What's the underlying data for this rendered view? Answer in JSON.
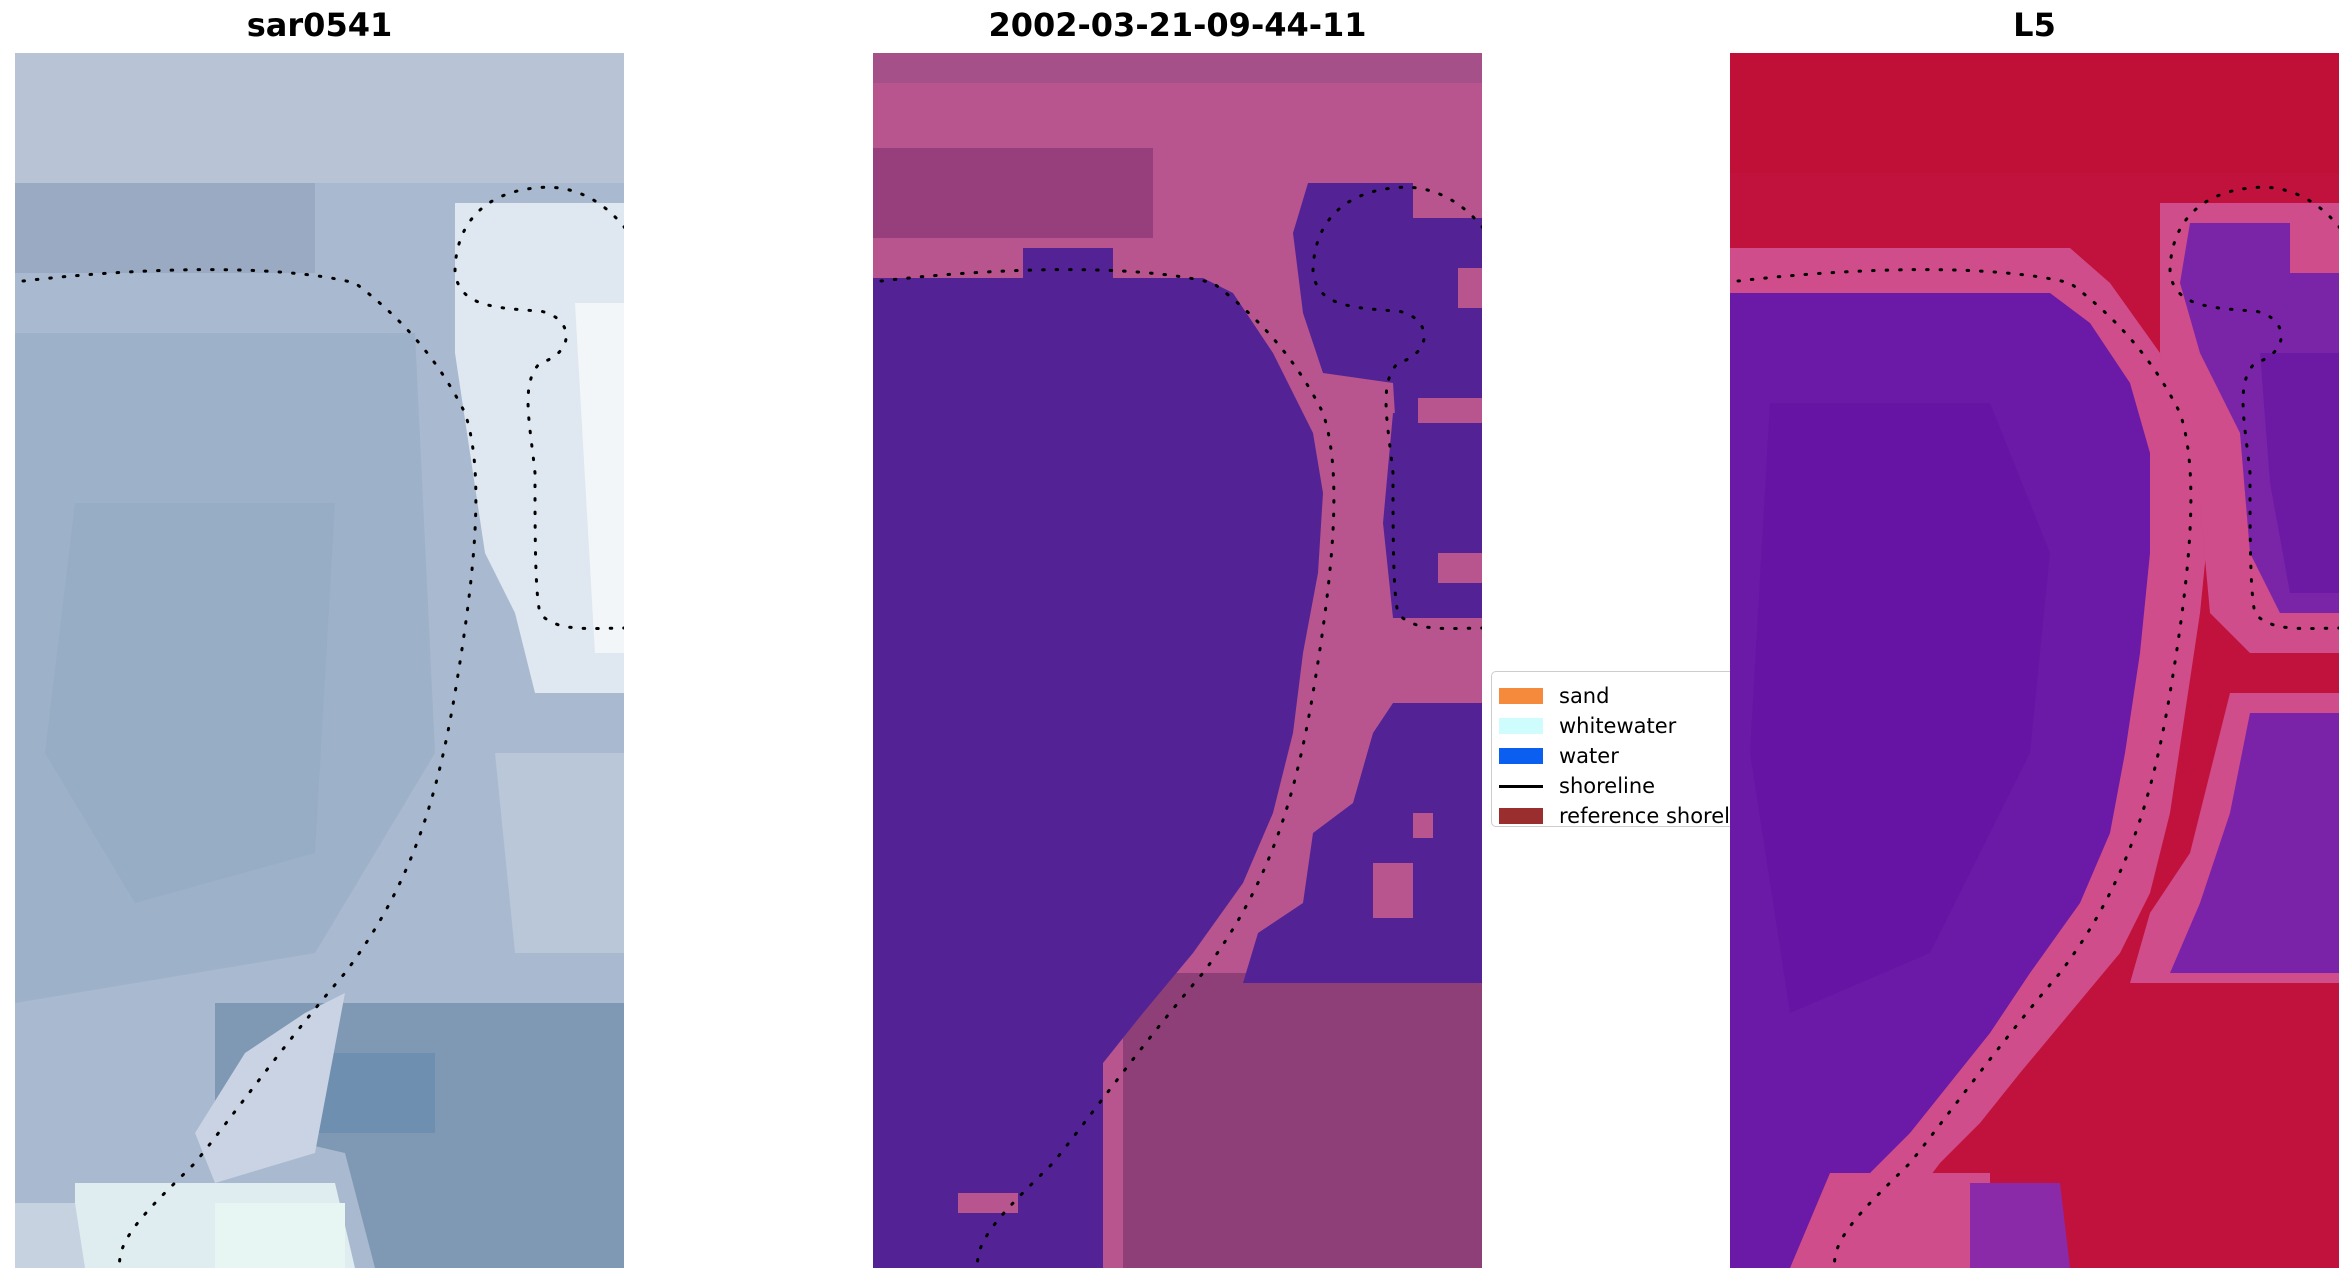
{
  "panels": {
    "rgb": {
      "title": "sar0541"
    },
    "classification": {
      "title": "2002-03-21-09-44-11"
    },
    "index": {
      "title": "L5"
    }
  },
  "legend": {
    "items": [
      {
        "label": "sand",
        "color": "#f58a3c",
        "kind": "patch"
      },
      {
        "label": "whitewater",
        "color": "#cffcfc",
        "kind": "patch"
      },
      {
        "label": "water",
        "color": "#0a5ef0",
        "kind": "patch"
      },
      {
        "label": "shoreline",
        "color": "#000000",
        "kind": "line"
      },
      {
        "label": "reference shoreline",
        "color": "#9a2e2e",
        "kind": "patch"
      }
    ]
  },
  "colors": {
    "class_water": "#532396",
    "class_land": "#b8558f",
    "class_land_dark": "#8f3f78",
    "index_water": "#6a1aa6",
    "index_land": "#c0123c",
    "index_transition": "#d24f87",
    "rgb_water": "#9fb2cc",
    "rgb_bright": "#e8eef4",
    "rgb_dark": "#7f96b0"
  }
}
